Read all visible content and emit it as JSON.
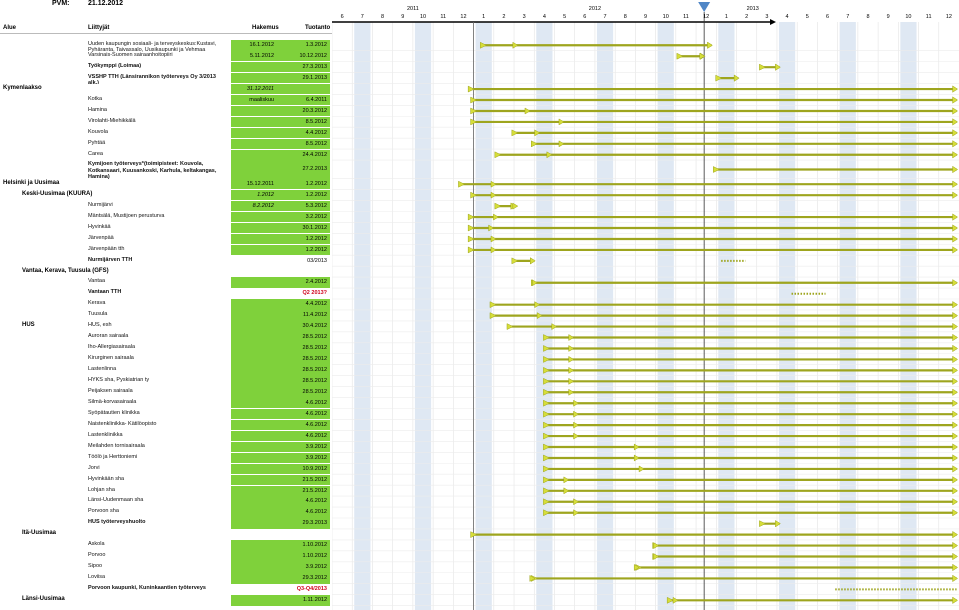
{
  "header": {
    "pvm_label": "PVM:",
    "pvm_value": "21.12.2012",
    "col_alue": "Alue",
    "col_liittyjat": "Liittyjät",
    "col_hakemus": "Hakemus",
    "col_tuotanto": "Tuotanto"
  },
  "timeline": {
    "years": [
      {
        "label": "2011",
        "center_month": 2011.5
      },
      {
        "label": "2012",
        "center_month": 2012.5
      },
      {
        "label": "2013",
        "center_month": 2013.5
      }
    ],
    "months": [
      "6",
      "7",
      "8",
      "9",
      "10",
      "11",
      "12",
      "1",
      "2",
      "3",
      "4",
      "5",
      "6",
      "7",
      "8",
      "9",
      "10",
      "11",
      "12",
      "1",
      "2",
      "3",
      "4",
      "5",
      "6",
      "7",
      "8",
      "9",
      "10",
      "11",
      "12"
    ],
    "current_month_marker": "12/2012",
    "colors": {
      "bar": "#9ea51e",
      "bar_light": "#d6de3a",
      "column_shade": "#dfe8f3",
      "green_cell": "#7fd13b",
      "marker": "#4f86c6"
    }
  },
  "chart_data": {
    "type": "table",
    "title": "",
    "xlabel": "",
    "ylabel": "",
    "columns": [
      "Alue",
      "Liittyjät",
      "Hakemus",
      "Tuotanto"
    ],
    "rows": [
      {
        "region": "",
        "org": "Uuden kaupungin sosiaali- ja terveyskeskus:Kustavi, Pyhäranta, Taivassalo, Uusikaupunki ja Vehmaa",
        "app": "16.1.2012",
        "prod": "1.3.2012",
        "green": true,
        "bar_start": 2012.04,
        "bar_end": 2012.98,
        "tick": 2012.17
      },
      {
        "region": "",
        "org": "Varsinais-Suomen sairaanhoitopiiri",
        "app": "5.11.2012",
        "prod": "10.12.2012",
        "green": true,
        "bar_start": 2012.85,
        "bar_end": 2012.95,
        "tick": 2012.94
      },
      {
        "region": "",
        "org": "Työkymppi (Loimaa)",
        "app": "",
        "prod": "27.3.2013",
        "bold": true,
        "green": true,
        "bar_start": 2013.19,
        "bar_end": 2013.26,
        "tick": null
      },
      {
        "region": "",
        "org": "VSSHP TTH (Länsirannikon työterveys Oy 3/2013 alk.)",
        "app": "",
        "prod": "29.1.2013",
        "bold": true,
        "green": true,
        "bar_start": 2013.01,
        "bar_end": 2013.09,
        "tick": null
      },
      {
        "region": "Kymenlaakso",
        "org": "",
        "app": "31.12.2011",
        "app_italic": true,
        "prod": "",
        "green": true,
        "bar_start": 2011.99,
        "bar_end": 2013.99,
        "tick": null
      },
      {
        "region": "",
        "org": "Kotka",
        "app": "maaliskuu",
        "prod": "6.4.2011",
        "green": true,
        "bar_start": 2012.0,
        "bar_end": 2013.99,
        "tick": null
      },
      {
        "region": "",
        "org": "Hamina",
        "app": "",
        "prod": "20.3.2012",
        "green": true,
        "bar_start": 2012.0,
        "bar_end": 2013.99,
        "tick": 2012.22
      },
      {
        "region": "",
        "org": "Virolahti-Miehikkälä",
        "app": "",
        "prod": "8.5.2012",
        "green": true,
        "bar_start": 2012.0,
        "bar_end": 2013.99,
        "tick": 2012.36
      },
      {
        "region": "",
        "org": "Kouvola",
        "app": "",
        "prod": "4.4.2012",
        "green": true,
        "bar_start": 2012.17,
        "bar_end": 2013.99,
        "tick": 2012.26
      },
      {
        "region": "",
        "org": "Pyhtää",
        "app": "",
        "prod": "8.5.2012",
        "green": true,
        "bar_start": 2012.25,
        "bar_end": 2013.99,
        "tick": 2012.36
      },
      {
        "region": "",
        "org": "Carea",
        "app": "",
        "prod": "24.4.2012",
        "green": true,
        "bar_start": 2012.1,
        "bar_end": 2013.99,
        "tick": 2012.31
      },
      {
        "region": "",
        "org": "Kymijoen työterveys*(toimipisteet: Kouvola, Kotkansaari, Kuusankoski, Karhula, keltakangas, Hamina)",
        "app": "",
        "prod": "27.2.2013",
        "bold": true,
        "green": true,
        "bar_start": 2013.0,
        "bar_end": 2013.99,
        "tick": null,
        "tall": true
      },
      {
        "region": "Helsinki ja Uusimaa",
        "org": "",
        "app": "15.12.2011",
        "prod": "1.2.2012",
        "green": true,
        "bar_start": 2011.95,
        "bar_end": 2013.99,
        "tick": 2012.08
      },
      {
        "region": "Keski-Uusimaa (KUURA)",
        "indent": true,
        "org": "",
        "app": "1.2012",
        "app_italic": true,
        "prod": "1.2.2012",
        "green": true,
        "bar_start": 2012.0,
        "bar_end": 2013.99,
        "tick": 2012.08
      },
      {
        "region": "",
        "org": "Nurmijärvi",
        "app": "8.2.2012",
        "app_italic": true,
        "prod": "5.3.2012",
        "green": true,
        "bar_start": 2012.1,
        "bar_end": 2012.17,
        "tick": 2012.17
      },
      {
        "region": "",
        "org": "Mäntsälä, Mustijoen perusturva",
        "app": "",
        "prod": "3.2.2012",
        "green": true,
        "bar_start": 2011.99,
        "bar_end": 2013.99,
        "tick": 2012.09
      },
      {
        "region": "",
        "org": "Hyvinkää",
        "app": "",
        "prod": "30.1.2012",
        "green": true,
        "bar_start": 2011.99,
        "bar_end": 2013.99,
        "tick": 2012.07
      },
      {
        "region": "",
        "org": "Järvenpää",
        "app": "",
        "prod": "1.2.2012",
        "green": true,
        "bar_start": 2011.99,
        "bar_end": 2013.99,
        "tick": 2012.08
      },
      {
        "region": "",
        "org": "Järvenpään tth",
        "app": "",
        "prod": "1.2.2012",
        "green": true,
        "bar_start": 2011.99,
        "bar_end": 2013.99,
        "tick": 2012.08
      },
      {
        "region": "",
        "org": "Nurmijärven TTH",
        "app": "",
        "prod": "03/2013",
        "bold": true,
        "green": false,
        "bar_start": 2012.17,
        "bar_end": 2012.25,
        "tick": null,
        "dotted": true,
        "dot_start": 2013.02,
        "dot_end": 2013.12
      },
      {
        "region": "Vantaa, Kerava, Tuusula (GFS)",
        "indent": true,
        "org": "",
        "app": "",
        "prod": "",
        "green": false,
        "bar_start": null,
        "bar_end": null,
        "tick": null
      },
      {
        "region": "",
        "org": "Vantaa",
        "app": "",
        "prod": "2.4.2012",
        "green": true,
        "bar_start": 2012.25,
        "bar_end": 2013.99,
        "tick": 2012.25
      },
      {
        "region": "",
        "org": "Vantaan TTH",
        "app": "",
        "prod": "Q2 2013?",
        "prod_red": true,
        "bold": true,
        "green": false,
        "bar_start": null,
        "bar_end": null,
        "tick": null,
        "dotted": true,
        "dot_start": 2013.31,
        "dot_end": 2013.45
      },
      {
        "region": "",
        "org": "Kerava",
        "app": "",
        "prod": "4.4.2012",
        "green": true,
        "bar_start": 2012.08,
        "bar_end": 2013.99,
        "tick": 2012.26
      },
      {
        "region": "",
        "org": "Tuusula",
        "app": "",
        "prod": "11.4.2012",
        "green": true,
        "bar_start": 2012.08,
        "bar_end": 2013.99,
        "tick": 2012.27
      },
      {
        "region": "HUS",
        "indent2": true,
        "org": "HUS, esh",
        "app": "",
        "prod": "30.4.2012",
        "green": true,
        "bar_start": 2012.15,
        "bar_end": 2013.99,
        "tick": 2012.33
      },
      {
        "region": "",
        "org": "Auroran sairaala",
        "app": "",
        "prod": "28.5.2012",
        "green": true,
        "bar_start": 2012.3,
        "bar_end": 2013.99,
        "tick": 2012.4
      },
      {
        "region": "",
        "org": "Iho-Allergiasairaala",
        "app": "",
        "prod": "28.5.2012",
        "green": true,
        "bar_start": 2012.3,
        "bar_end": 2013.99,
        "tick": 2012.4
      },
      {
        "region": "",
        "org": "Kirurginen sairaala",
        "app": "",
        "prod": "28.5.2012",
        "green": true,
        "bar_start": 2012.3,
        "bar_end": 2013.99,
        "tick": 2012.4
      },
      {
        "region": "",
        "org": "Lastenlinna",
        "app": "",
        "prod": "28.5.2012",
        "green": true,
        "bar_start": 2012.3,
        "bar_end": 2013.99,
        "tick": 2012.4
      },
      {
        "region": "",
        "org": "HYKS sha, Pyskiatrian ty",
        "app": "",
        "prod": "28.5.2012",
        "green": true,
        "bar_start": 2012.3,
        "bar_end": 2013.99,
        "tick": 2012.4
      },
      {
        "region": "",
        "org": "Peijaksen sairaala",
        "app": "",
        "prod": "28.5.2012",
        "green": true,
        "bar_start": 2012.3,
        "bar_end": 2013.99,
        "tick": 2012.4
      },
      {
        "region": "",
        "org": "Silmä-korvasairaala",
        "app": "",
        "prod": "4.6.2012",
        "green": true,
        "bar_start": 2012.3,
        "bar_end": 2013.99,
        "tick": 2012.42
      },
      {
        "region": "",
        "org": "Syöpätautien klinikka",
        "app": "",
        "prod": "4.6.2012",
        "green": true,
        "bar_start": 2012.3,
        "bar_end": 2013.99,
        "tick": 2012.42
      },
      {
        "region": "",
        "org": "Naistenklinikka- Kätilöopisto",
        "app": "",
        "prod": "4.6.2012",
        "green": true,
        "bar_start": 2012.3,
        "bar_end": 2013.99,
        "tick": 2012.42
      },
      {
        "region": "",
        "org": "Lastenklinikka",
        "app": "",
        "prod": "4.6.2012",
        "green": true,
        "bar_start": 2012.3,
        "bar_end": 2013.99,
        "tick": 2012.42
      },
      {
        "region": "",
        "org": "Meilahden tornisairaala",
        "app": "",
        "prod": "3.9.2012",
        "green": true,
        "bar_start": 2012.3,
        "bar_end": 2013.99,
        "tick": 2012.67
      },
      {
        "region": "",
        "org": "Töölö ja Herttoniemi",
        "app": "",
        "prod": "3.9.2012",
        "green": true,
        "bar_start": 2012.3,
        "bar_end": 2013.99,
        "tick": 2012.67
      },
      {
        "region": "",
        "org": "Jorvi",
        "app": "",
        "prod": "10.9.2012",
        "green": true,
        "bar_start": 2012.3,
        "bar_end": 2013.99,
        "tick": 2012.69
      },
      {
        "region": "",
        "org": "Hyvinkään sha",
        "app": "",
        "prod": "21.5.2012",
        "green": true,
        "bar_start": 2012.3,
        "bar_end": 2013.99,
        "tick": 2012.38
      },
      {
        "region": "",
        "org": "Lohjan sha",
        "app": "",
        "prod": "21.5.2012",
        "green": true,
        "bar_start": 2012.3,
        "bar_end": 2013.99,
        "tick": 2012.38
      },
      {
        "region": "",
        "org": "Länsi-Uudenmaan sha",
        "app": "",
        "prod": "4.6.2012",
        "green": true,
        "bar_start": 2012.3,
        "bar_end": 2013.99,
        "tick": 2012.42
      },
      {
        "region": "",
        "org": "Porvoon sha",
        "app": "",
        "prod": "4.6.2012",
        "green": true,
        "bar_start": 2012.3,
        "bar_end": 2013.99,
        "tick": 2012.42
      },
      {
        "region": "",
        "org": "HUS työterveyshuolto",
        "app": "",
        "prod": "29.3.2013",
        "bold": true,
        "green": true,
        "bar_start": 2013.19,
        "bar_end": 2013.26,
        "tick": null
      },
      {
        "region": "Itä-Uusimaa",
        "indent2": true,
        "org": "",
        "app": "",
        "prod": "",
        "green": false,
        "bar_start": 2012.0,
        "bar_end": 2013.99,
        "tick": null
      },
      {
        "region": "",
        "org": "Askola",
        "app": "",
        "prod": "1.10.2012",
        "green": true,
        "bar_start": 2012.75,
        "bar_end": 2013.99,
        "tick": 2012.75
      },
      {
        "region": "",
        "org": "Porvoo",
        "app": "",
        "prod": "1.10.2012",
        "green": true,
        "bar_start": 2012.75,
        "bar_end": 2013.99,
        "tick": 2012.75
      },
      {
        "region": "",
        "org": "Sipoo",
        "app": "",
        "prod": "3.9.2012",
        "green": true,
        "bar_start": 2012.68,
        "bar_end": 2013.99,
        "tick": 2012.67
      },
      {
        "region": "",
        "org": "Loviisa",
        "app": "",
        "prod": "29.3.2012",
        "green": true,
        "bar_start": 2012.25,
        "bar_end": 2013.99,
        "tick": 2012.24
      },
      {
        "region": "",
        "org": "Porvoon kaupunki, Kuninkaantien työterveys",
        "app": "",
        "prod": "Q3-Q4/2013",
        "prod_red": true,
        "bold": true,
        "green": false,
        "bar_start": null,
        "bar_end": null,
        "tick": null,
        "dotted": true,
        "dot_start": 2013.49,
        "dot_end": 2013.99
      },
      {
        "region": "Länsi-Uusimaa",
        "indent2": true,
        "org": "",
        "app": "",
        "prod": "1.11.2012",
        "green": true,
        "bar_start": 2012.81,
        "bar_end": 2013.99,
        "tick": 2012.83
      }
    ]
  }
}
